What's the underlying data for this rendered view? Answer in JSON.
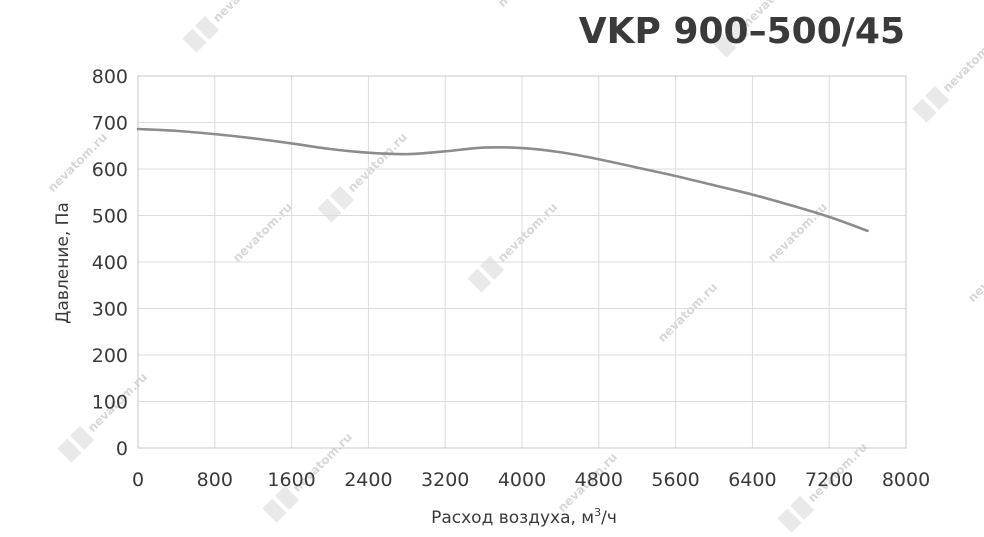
{
  "watermark": {
    "text": "nevatom.ru",
    "color": "#e6e6e6"
  },
  "chart_data": {
    "type": "line",
    "title": "VKP 900–500/45",
    "xlabel": "Расход воздуха, м",
    "xlabel_sup": "3",
    "xlabel_suffix": "/ч",
    "ylabel": "Давление, Па",
    "xlim": [
      0,
      8000
    ],
    "ylim": [
      0,
      800
    ],
    "xticks": [
      0,
      800,
      1600,
      2400,
      3200,
      4000,
      4800,
      5600,
      6400,
      7200,
      8000
    ],
    "yticks": [
      0,
      100,
      200,
      300,
      400,
      500,
      600,
      700,
      800
    ],
    "grid": true,
    "line_color": "#8c8c8c",
    "series": [
      {
        "x": [
          0,
          400,
          800,
          1200,
          1600,
          2000,
          2400,
          2800,
          3200,
          3600,
          4000,
          4400,
          4800,
          5200,
          5600,
          6000,
          6400,
          6800,
          7200,
          7600
        ],
        "values": [
          686,
          682,
          675,
          666,
          655,
          643,
          635,
          632,
          638,
          646,
          645,
          636,
          621,
          603,
          585,
          565,
          545,
          522,
          497,
          467
        ]
      }
    ]
  }
}
